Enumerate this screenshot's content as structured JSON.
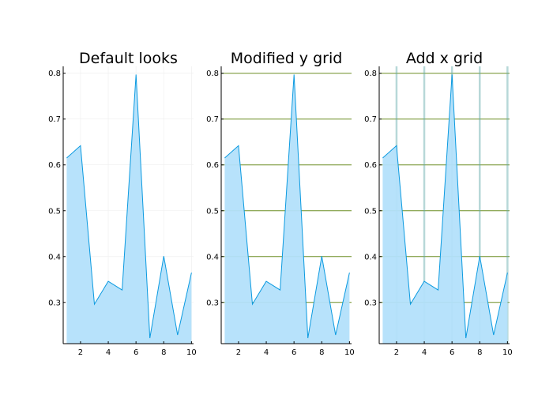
{
  "chart_data": [
    {
      "type": "area",
      "title": "Default looks",
      "x": [
        1,
        2,
        3,
        4,
        5,
        6,
        7,
        8,
        9,
        10
      ],
      "series": [
        {
          "values": [
            0.615,
            0.642,
            0.296,
            0.346,
            0.327,
            0.797,
            0.222,
            0.401,
            0.229,
            0.365
          ]
        }
      ],
      "xlim": [
        0.75,
        10.15
      ],
      "ylim": [
        0.21,
        0.815
      ],
      "xticks": [
        "2",
        "4",
        "6",
        "8",
        "10"
      ],
      "yticks": [
        "0.3",
        "0.4",
        "0.5",
        "0.6",
        "0.7",
        "0.8"
      ],
      "grid": {
        "x": "faint gray",
        "y": "faint gray"
      },
      "legend": "none"
    },
    {
      "type": "area",
      "title": "Modified y grid",
      "x": [
        1,
        2,
        3,
        4,
        5,
        6,
        7,
        8,
        9,
        10
      ],
      "series": [
        {
          "values": [
            0.615,
            0.642,
            0.296,
            0.346,
            0.327,
            0.797,
            0.222,
            0.401,
            0.229,
            0.365
          ]
        }
      ],
      "xlim": [
        0.75,
        10.15
      ],
      "ylim": [
        0.21,
        0.815
      ],
      "xticks": [
        "2",
        "4",
        "6",
        "8",
        "10"
      ],
      "yticks": [
        "0.3",
        "0.4",
        "0.5",
        "0.6",
        "0.7",
        "0.8"
      ],
      "grid": {
        "x": "none",
        "y": "green"
      },
      "legend": "none"
    },
    {
      "type": "area",
      "title": "Add x grid",
      "x": [
        1,
        2,
        3,
        4,
        5,
        6,
        7,
        8,
        9,
        10
      ],
      "series": [
        {
          "values": [
            0.615,
            0.642,
            0.296,
            0.346,
            0.327,
            0.797,
            0.222,
            0.401,
            0.229,
            0.365
          ]
        }
      ],
      "xlim": [
        0.75,
        10.15
      ],
      "ylim": [
        0.21,
        0.815
      ],
      "xticks": [
        "2",
        "4",
        "6",
        "8",
        "10"
      ],
      "yticks": [
        "0.3",
        "0.4",
        "0.5",
        "0.6",
        "0.7",
        "0.8"
      ],
      "grid": {
        "x": "thick teal",
        "y": "green"
      },
      "legend": "none"
    }
  ],
  "colors": {
    "line": "#0b9ae0",
    "fill": "#b3e0fb",
    "axis": "#000000",
    "grid_default": "#eeeeee",
    "grid_y": "#6b8e23",
    "grid_x": "#5fa8a8"
  }
}
